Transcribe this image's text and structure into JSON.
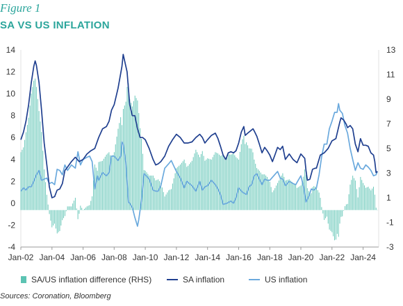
{
  "figure_label": "Figure 1",
  "title": "SA VS US INFLATION",
  "source": "Sources: Coronation, Bloomberg",
  "colors": {
    "bars": "#5cc3b3",
    "sa_line": "#1f3f8f",
    "us_line": "#6aa9dd",
    "title": "#2ba59b"
  },
  "chart_data": {
    "type": "bar+line",
    "title": "SA VS US INFLATION",
    "x_tick_labels": [
      "Jan-02",
      "Jan-04",
      "Jan-06",
      "Jan-08",
      "Jan-10",
      "Jan-12",
      "Jan-14",
      "Jan-16",
      "Jan-18",
      "Jan-20",
      "Jan-22",
      "Jan-24"
    ],
    "x_range": [
      2002.0,
      2025.0
    ],
    "y_left": {
      "ylim": [
        -4,
        14
      ],
      "ticks": [
        "-4",
        "-2",
        "0",
        "2",
        "4",
        "6",
        "8",
        "10",
        "12",
        "14"
      ]
    },
    "y_right": {
      "ylim": [
        -3,
        13
      ],
      "ticks": [
        "-3",
        "-1",
        "1",
        "3",
        "5",
        "7",
        "9",
        "11",
        "13"
      ]
    },
    "legend": [
      "SA/US inflation difference (RHS)",
      "SA inflation",
      "US inflation"
    ],
    "legend_placement": "bottom",
    "grid": false,
    "series": [
      {
        "name": "SA inflation",
        "kind": "line",
        "axis": "left",
        "points": [
          [
            2002.0,
            5.8
          ],
          [
            2002.17,
            6.5
          ],
          [
            2002.33,
            7.5
          ],
          [
            2002.5,
            9.0
          ],
          [
            2002.67,
            11.0
          ],
          [
            2002.83,
            12.5
          ],
          [
            2002.92,
            13.0
          ],
          [
            2003.0,
            12.6
          ],
          [
            2003.17,
            11.0
          ],
          [
            2003.33,
            8.5
          ],
          [
            2003.5,
            5.5
          ],
          [
            2003.67,
            3.5
          ],
          [
            2003.83,
            1.5
          ],
          [
            2004.0,
            0.5
          ],
          [
            2004.17,
            0.6
          ],
          [
            2004.33,
            1.2
          ],
          [
            2004.5,
            1.3
          ],
          [
            2004.67,
            1.8
          ],
          [
            2004.83,
            3.0
          ],
          [
            2005.0,
            3.3
          ],
          [
            2005.25,
            3.8
          ],
          [
            2005.5,
            4.2
          ],
          [
            2005.75,
            3.8
          ],
          [
            2006.0,
            4.0
          ],
          [
            2006.25,
            4.5
          ],
          [
            2006.5,
            4.8
          ],
          [
            2006.75,
            5.0
          ],
          [
            2007.0,
            6.0
          ],
          [
            2007.25,
            6.8
          ],
          [
            2007.5,
            7.0
          ],
          [
            2007.67,
            7.5
          ],
          [
            2007.83,
            8.5
          ],
          [
            2008.0,
            9.0
          ],
          [
            2008.25,
            10.5
          ],
          [
            2008.5,
            12.5
          ],
          [
            2008.58,
            13.6
          ],
          [
            2008.67,
            13.0
          ],
          [
            2008.83,
            12.0
          ],
          [
            2009.0,
            9.0
          ],
          [
            2009.17,
            8.0
          ],
          [
            2009.33,
            8.0
          ],
          [
            2009.5,
            6.8
          ],
          [
            2009.67,
            6.0
          ],
          [
            2009.83,
            6.0
          ],
          [
            2010.0,
            5.8
          ],
          [
            2010.25,
            5.0
          ],
          [
            2010.5,
            4.0
          ],
          [
            2010.67,
            3.5
          ],
          [
            2010.83,
            3.6
          ],
          [
            2011.0,
            3.8
          ],
          [
            2011.25,
            4.3
          ],
          [
            2011.5,
            5.2
          ],
          [
            2011.75,
            5.8
          ],
          [
            2012.0,
            6.3
          ],
          [
            2012.25,
            6.0
          ],
          [
            2012.5,
            5.5
          ],
          [
            2012.75,
            5.5
          ],
          [
            2013.0,
            5.6
          ],
          [
            2013.25,
            6.0
          ],
          [
            2013.5,
            6.3
          ],
          [
            2013.67,
            6.0
          ],
          [
            2013.83,
            5.5
          ],
          [
            2014.0,
            5.8
          ],
          [
            2014.25,
            6.2
          ],
          [
            2014.5,
            6.4
          ],
          [
            2014.67,
            5.9
          ],
          [
            2014.83,
            5.2
          ],
          [
            2015.0,
            4.4
          ],
          [
            2015.17,
            4.0
          ],
          [
            2015.33,
            4.6
          ],
          [
            2015.5,
            4.7
          ],
          [
            2015.67,
            4.6
          ],
          [
            2015.83,
            4.8
          ],
          [
            2016.0,
            5.5
          ],
          [
            2016.17,
            6.5
          ],
          [
            2016.33,
            7.0
          ],
          [
            2016.42,
            6.2
          ],
          [
            2016.58,
            6.4
          ],
          [
            2016.75,
            6.6
          ],
          [
            2016.92,
            6.8
          ],
          [
            2017.0,
            6.6
          ],
          [
            2017.17,
            6.1
          ],
          [
            2017.33,
            5.4
          ],
          [
            2017.5,
            4.6
          ],
          [
            2017.67,
            5.1
          ],
          [
            2017.83,
            4.8
          ],
          [
            2018.0,
            4.4
          ],
          [
            2018.17,
            3.8
          ],
          [
            2018.33,
            4.4
          ],
          [
            2018.5,
            5.1
          ],
          [
            2018.67,
            4.9
          ],
          [
            2018.83,
            5.2
          ],
          [
            2019.0,
            4.0
          ],
          [
            2019.25,
            4.5
          ],
          [
            2019.5,
            4.0
          ],
          [
            2019.75,
            3.7
          ],
          [
            2020.0,
            4.5
          ],
          [
            2020.25,
            4.1
          ],
          [
            2020.33,
            3.0
          ],
          [
            2020.42,
            2.1
          ],
          [
            2020.58,
            2.2
          ],
          [
            2020.75,
            3.1
          ],
          [
            2020.92,
            3.2
          ],
          [
            2021.0,
            3.2
          ],
          [
            2021.25,
            4.4
          ],
          [
            2021.5,
            4.6
          ],
          [
            2021.75,
            5.0
          ],
          [
            2022.0,
            5.7
          ],
          [
            2022.25,
            5.9
          ],
          [
            2022.5,
            7.4
          ],
          [
            2022.58,
            7.8
          ],
          [
            2022.75,
            7.6
          ],
          [
            2022.92,
            7.2
          ],
          [
            2023.0,
            6.9
          ],
          [
            2023.17,
            7.1
          ],
          [
            2023.33,
            6.8
          ],
          [
            2023.5,
            5.4
          ],
          [
            2023.67,
            4.7
          ],
          [
            2023.83,
            5.9
          ],
          [
            2024.0,
            5.3
          ],
          [
            2024.17,
            5.3
          ],
          [
            2024.33,
            5.2
          ],
          [
            2024.5,
            4.6
          ],
          [
            2024.67,
            4.4
          ],
          [
            2024.75,
            3.8
          ],
          [
            2024.83,
            2.8
          ],
          [
            2024.92,
            2.9
          ]
        ]
      },
      {
        "name": "US inflation",
        "kind": "line",
        "axis": "left",
        "points": [
          [
            2002.0,
            1.1
          ],
          [
            2002.17,
            1.4
          ],
          [
            2002.33,
            1.2
          ],
          [
            2002.5,
            1.5
          ],
          [
            2002.67,
            1.5
          ],
          [
            2002.83,
            2.0
          ],
          [
            2003.0,
            2.6
          ],
          [
            2003.17,
            3.0
          ],
          [
            2003.33,
            2.1
          ],
          [
            2003.5,
            2.2
          ],
          [
            2003.67,
            2.3
          ],
          [
            2003.83,
            1.8
          ],
          [
            2004.0,
            1.9
          ],
          [
            2004.17,
            1.7
          ],
          [
            2004.33,
            3.1
          ],
          [
            2004.5,
            3.0
          ],
          [
            2004.67,
            2.6
          ],
          [
            2004.83,
            3.5
          ],
          [
            2005.0,
            3.0
          ],
          [
            2005.25,
            3.5
          ],
          [
            2005.5,
            3.2
          ],
          [
            2005.67,
            4.7
          ],
          [
            2005.83,
            3.5
          ],
          [
            2006.0,
            4.0
          ],
          [
            2006.25,
            4.2
          ],
          [
            2006.42,
            4.3
          ],
          [
            2006.58,
            3.8
          ],
          [
            2006.75,
            1.3
          ],
          [
            2006.92,
            2.5
          ],
          [
            2007.0,
            2.1
          ],
          [
            2007.25,
            2.8
          ],
          [
            2007.5,
            2.5
          ],
          [
            2007.67,
            2.8
          ],
          [
            2007.83,
            4.3
          ],
          [
            2008.0,
            4.3
          ],
          [
            2008.25,
            3.9
          ],
          [
            2008.42,
            4.3
          ],
          [
            2008.5,
            5.6
          ],
          [
            2008.58,
            5.4
          ],
          [
            2008.75,
            3.7
          ],
          [
            2008.92,
            0.1
          ],
          [
            2009.0,
            0.0
          ],
          [
            2009.17,
            -0.4
          ],
          [
            2009.33,
            -1.3
          ],
          [
            2009.5,
            -2.1
          ],
          [
            2009.58,
            -1.5
          ],
          [
            2009.75,
            0.2
          ],
          [
            2009.92,
            2.7
          ],
          [
            2010.0,
            2.6
          ],
          [
            2010.25,
            2.2
          ],
          [
            2010.5,
            1.2
          ],
          [
            2010.67,
            1.1
          ],
          [
            2010.83,
            1.1
          ],
          [
            2011.0,
            1.6
          ],
          [
            2011.25,
            3.2
          ],
          [
            2011.5,
            3.6
          ],
          [
            2011.67,
            3.9
          ],
          [
            2011.83,
            3.4
          ],
          [
            2012.0,
            2.9
          ],
          [
            2012.25,
            2.3
          ],
          [
            2012.5,
            1.4
          ],
          [
            2012.67,
            2.0
          ],
          [
            2012.83,
            1.8
          ],
          [
            2013.0,
            1.6
          ],
          [
            2013.25,
            1.1
          ],
          [
            2013.5,
            2.0
          ],
          [
            2013.67,
            1.2
          ],
          [
            2013.83,
            1.5
          ],
          [
            2014.0,
            1.6
          ],
          [
            2014.25,
            2.1
          ],
          [
            2014.5,
            1.7
          ],
          [
            2014.67,
            1.3
          ],
          [
            2014.83,
            0.8
          ],
          [
            2015.0,
            -0.1
          ],
          [
            2015.25,
            0.0
          ],
          [
            2015.5,
            0.2
          ],
          [
            2015.67,
            0.0
          ],
          [
            2015.83,
            0.5
          ],
          [
            2016.0,
            1.4
          ],
          [
            2016.25,
            1.0
          ],
          [
            2016.5,
            0.8
          ],
          [
            2016.67,
            1.5
          ],
          [
            2016.83,
            1.7
          ],
          [
            2017.0,
            2.5
          ],
          [
            2017.17,
            2.7
          ],
          [
            2017.33,
            2.2
          ],
          [
            2017.5,
            1.7
          ],
          [
            2017.67,
            2.2
          ],
          [
            2017.83,
            2.1
          ],
          [
            2018.0,
            2.1
          ],
          [
            2018.25,
            2.5
          ],
          [
            2018.5,
            2.9
          ],
          [
            2018.67,
            2.3
          ],
          [
            2018.83,
            2.2
          ],
          [
            2019.0,
            1.6
          ],
          [
            2019.25,
            2.0
          ],
          [
            2019.5,
            1.8
          ],
          [
            2019.67,
            1.7
          ],
          [
            2019.83,
            2.1
          ],
          [
            2020.0,
            2.5
          ],
          [
            2020.17,
            1.5
          ],
          [
            2020.33,
            0.1
          ],
          [
            2020.5,
            0.6
          ],
          [
            2020.67,
            1.3
          ],
          [
            2020.83,
            1.2
          ],
          [
            2021.0,
            1.4
          ],
          [
            2021.17,
            2.6
          ],
          [
            2021.33,
            4.2
          ],
          [
            2021.5,
            5.4
          ],
          [
            2021.67,
            5.4
          ],
          [
            2021.83,
            6.8
          ],
          [
            2022.0,
            7.5
          ],
          [
            2022.17,
            8.3
          ],
          [
            2022.33,
            8.3
          ],
          [
            2022.42,
            9.1
          ],
          [
            2022.5,
            8.5
          ],
          [
            2022.67,
            8.2
          ],
          [
            2022.83,
            7.1
          ],
          [
            2023.0,
            6.4
          ],
          [
            2023.17,
            5.0
          ],
          [
            2023.33,
            4.0
          ],
          [
            2023.5,
            3.0
          ],
          [
            2023.67,
            3.7
          ],
          [
            2023.83,
            3.2
          ],
          [
            2024.0,
            3.1
          ],
          [
            2024.17,
            3.5
          ],
          [
            2024.33,
            3.3
          ],
          [
            2024.5,
            3.0
          ],
          [
            2024.67,
            2.5
          ],
          [
            2024.83,
            2.6
          ],
          [
            2024.92,
            2.9
          ]
        ]
      }
    ]
  }
}
